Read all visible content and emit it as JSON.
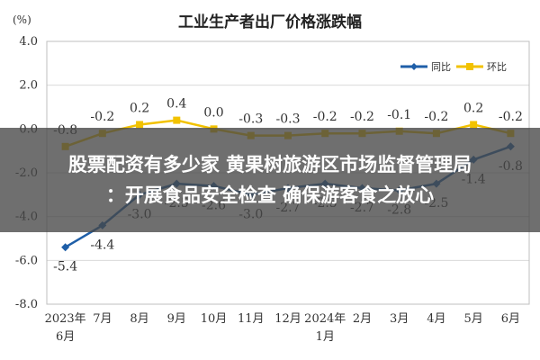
{
  "chart_data": {
    "type": "line",
    "title": "工业生产者出厂价格涨跌幅",
    "ylabel": "(%)",
    "ylim": [
      -8.0,
      4.0
    ],
    "yticks": [
      "4.0",
      "2.0",
      "0.0",
      "-2.0",
      "-4.0",
      "-6.0",
      "-8.0"
    ],
    "ytick_values": [
      4,
      2,
      0,
      -2,
      -4,
      -6,
      -8
    ],
    "categories": [
      [
        "2023年",
        "6月"
      ],
      [
        "7月"
      ],
      [
        "8月"
      ],
      [
        "9月"
      ],
      [
        "10月"
      ],
      [
        "11月"
      ],
      [
        "12月"
      ],
      [
        "2024年",
        "1月"
      ],
      [
        "2月"
      ],
      [
        "3月"
      ],
      [
        "4月"
      ],
      [
        "5月"
      ],
      [
        "6月"
      ]
    ],
    "grid": true,
    "legend": "top-right",
    "series": [
      {
        "name": "同比",
        "color": "#1f5fa8",
        "values": [
          -5.4,
          -4.4,
          -3.0,
          -2.5,
          -2.6,
          -3.0,
          -2.7,
          -2.5,
          -2.7,
          -2.8,
          -2.5,
          -1.4,
          -0.8
        ],
        "labels": [
          "-5.4",
          "-4.4",
          "-3.0",
          "-2.5",
          "-2.6",
          "-3.0",
          "-2.7",
          "-2.5",
          "-2.7",
          "-2.8",
          "-2.5",
          "-1.4",
          "-0.8"
        ]
      },
      {
        "name": "环比",
        "color": "#f2c200",
        "values": [
          -0.8,
          -0.2,
          0.2,
          0.4,
          0.0,
          -0.3,
          -0.3,
          -0.2,
          -0.2,
          -0.1,
          -0.2,
          0.2,
          -0.2
        ],
        "labels": [
          "-0.8",
          "-0.2",
          "0.2",
          "0.4",
          "0.0",
          "-0.3",
          "-0.3",
          "-0.2",
          "-0.2",
          "-0.1",
          "-0.2",
          "0.2",
          "-0.2"
        ]
      }
    ]
  },
  "overlay": {
    "line1": "股票配资有多少家 黄果树旅游区市场监督管理局",
    "line2": "：开展食品安全检查 确保游客食之放心"
  }
}
